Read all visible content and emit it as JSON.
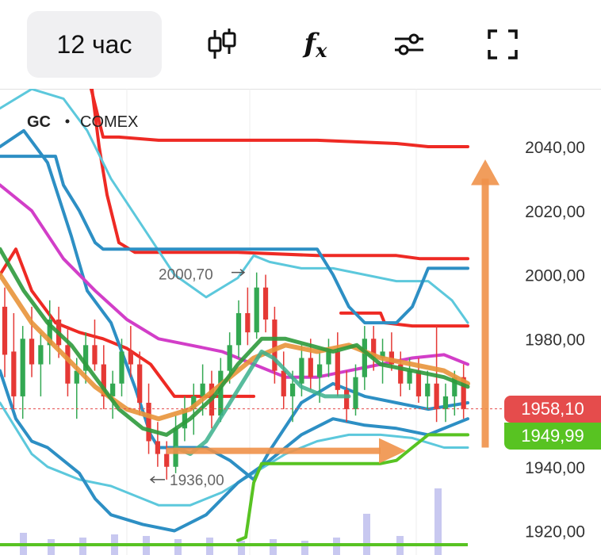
{
  "toolbar": {
    "interval_label": "12 час",
    "icons": [
      "candlestick-icon",
      "function-icon",
      "settings-sliders-icon",
      "fullscreen-icon"
    ]
  },
  "chart_data": {
    "type": "candlestick",
    "symbol": "GC",
    "exchange": "COMEX",
    "y_ticks": [
      "2040,00",
      "2020,00",
      "2000,00",
      "1980,00",
      "1940,00",
      "1920,00"
    ],
    "y_range": [
      1913,
      2053
    ],
    "annotations": {
      "high_label": "2000,70",
      "low_label": "1936,00"
    },
    "price_badges": {
      "last_price": "1958,10",
      "level": "1949,99"
    },
    "colors": {
      "up": "#33a852",
      "down": "#e53935",
      "red_band": "#ee2a24",
      "blue_band": "#2d8fc4",
      "cyan_band": "#5cc8dc",
      "magenta_ma": "#d23ec8",
      "orange_ma": "#e8943a",
      "green_ma": "#2e9a3c",
      "teal_line": "#3bb08c",
      "lime_line": "#58c322",
      "arrow": "#f0924a",
      "volume": "#c8c8f0"
    },
    "candles": [
      [
        1990,
        1996,
        1968,
        1975
      ],
      [
        1976,
        1988,
        1958,
        1962
      ],
      [
        1962,
        1984,
        1955,
        1980
      ],
      [
        1980,
        1990,
        1968,
        1972
      ],
      [
        1972,
        1982,
        1962,
        1978
      ],
      [
        1978,
        1992,
        1972,
        1986
      ],
      [
        1986,
        1990,
        1974,
        1978
      ],
      [
        1978,
        1984,
        1962,
        1966
      ],
      [
        1966,
        1974,
        1955,
        1970
      ],
      [
        1970,
        1982,
        1966,
        1978
      ],
      [
        1978,
        1986,
        1970,
        1972
      ],
      [
        1972,
        1978,
        1958,
        1962
      ],
      [
        1962,
        1970,
        1955,
        1966
      ],
      [
        1966,
        1980,
        1962,
        1976
      ],
      [
        1976,
        1984,
        1968,
        1972
      ],
      [
        1972,
        1976,
        1956,
        1960
      ],
      [
        1960,
        1966,
        1944,
        1948
      ],
      [
        1948,
        1954,
        1940,
        1944
      ],
      [
        1944,
        1948,
        1936,
        1940
      ],
      [
        1940,
        1956,
        1938,
        1952
      ],
      [
        1952,
        1962,
        1948,
        1958
      ],
      [
        1958,
        1966,
        1950,
        1962
      ],
      [
        1962,
        1972,
        1956,
        1966
      ],
      [
        1966,
        1970,
        1952,
        1956
      ],
      [
        1956,
        1974,
        1954,
        1970
      ],
      [
        1970,
        1982,
        1966,
        1978
      ],
      [
        1978,
        1992,
        1974,
        1988
      ],
      [
        1988,
        1996,
        1978,
        1982
      ],
      [
        1982,
        2000.7,
        1980,
        1996
      ],
      [
        1996,
        2000,
        1982,
        1986
      ],
      [
        1986,
        1990,
        1966,
        1970
      ],
      [
        1970,
        1976,
        1958,
        1962
      ],
      [
        1962,
        1970,
        1954,
        1966
      ],
      [
        1966,
        1978,
        1962,
        1974
      ],
      [
        1974,
        1980,
        1964,
        1968
      ],
      [
        1968,
        1976,
        1960,
        1972
      ],
      [
        1972,
        1980,
        1968,
        1976
      ],
      [
        1976,
        1982,
        1962,
        1964
      ],
      [
        1964,
        1970,
        1954,
        1958
      ],
      [
        1958,
        1972,
        1956,
        1968
      ],
      [
        1968,
        1984,
        1964,
        1980
      ],
      [
        1980,
        1984,
        1970,
        1974
      ],
      [
        1974,
        1980,
        1966,
        1976
      ],
      [
        1976,
        1982,
        1970,
        1972
      ],
      [
        1972,
        1976,
        1962,
        1966
      ],
      [
        1966,
        1974,
        1964,
        1970
      ],
      [
        1970,
        1974,
        1960,
        1962
      ],
      [
        1962,
        1970,
        1958,
        1966
      ],
      [
        1966,
        1984,
        1954,
        1958
      ],
      [
        1958,
        1966,
        1954,
        1962
      ],
      [
        1962,
        1970,
        1956,
        1968
      ],
      [
        1968,
        1972,
        1955,
        1958
      ]
    ],
    "bands": {
      "red": [
        [
          [
            110,
            2063
          ],
          [
            120,
            2053
          ],
          [
            130,
            2043
          ],
          [
            150,
            2043
          ],
          [
            200,
            2042
          ],
          [
            300,
            2042
          ],
          [
            400,
            2042
          ],
          [
            500,
            2041
          ],
          [
            540,
            2040
          ],
          [
            590,
            2040
          ]
        ],
        [
          [
            0,
            2000
          ],
          [
            20,
            2008
          ],
          [
            40,
            1995
          ],
          [
            70,
            1985
          ],
          [
            100,
            1982
          ],
          [
            130,
            1980
          ],
          [
            160,
            1977
          ],
          [
            190,
            1972
          ],
          [
            220,
            1962
          ],
          [
            270,
            1962
          ],
          [
            320,
            1962
          ]
        ],
        [
          [
            115,
            2060
          ],
          [
            125,
            2040
          ],
          [
            135,
            2025
          ],
          [
            150,
            2010
          ],
          [
            170,
            2007
          ],
          [
            250,
            2007
          ],
          [
            300,
            2007
          ],
          [
            400,
            2006
          ],
          [
            500,
            2006
          ],
          [
            530,
            2005
          ],
          [
            590,
            2005
          ]
        ],
        [
          [
            430,
            1988
          ],
          [
            470,
            1988
          ],
          [
            480,
            1988
          ],
          [
            485,
            1985
          ],
          [
            520,
            1984
          ],
          [
            590,
            1984
          ]
        ]
      ],
      "blue": [
        [
          [
            0,
            2037
          ],
          [
            70,
            2037
          ],
          [
            80,
            2028
          ],
          [
            100,
            2020
          ],
          [
            120,
            2010
          ],
          [
            130,
            2008
          ],
          [
            200,
            2008
          ],
          [
            300,
            2008
          ],
          [
            400,
            2008
          ],
          [
            420,
            2000
          ],
          [
            440,
            1990
          ],
          [
            460,
            1985
          ],
          [
            500,
            1985
          ],
          [
            520,
            1990
          ],
          [
            540,
            2002
          ],
          [
            590,
            2002
          ]
        ],
        [
          [
            0,
            2040
          ],
          [
            30,
            2045
          ],
          [
            60,
            2035
          ],
          [
            90,
            2012
          ],
          [
            110,
            1995
          ],
          [
            140,
            1985
          ],
          [
            170,
            1965
          ],
          [
            190,
            1950
          ],
          [
            200,
            1946
          ],
          [
            260,
            1946
          ],
          [
            290,
            1942
          ],
          [
            320,
            1936
          ],
          [
            340,
            1945
          ],
          [
            380,
            1960
          ],
          [
            420,
            1966
          ],
          [
            460,
            1962
          ],
          [
            500,
            1960
          ],
          [
            540,
            1958
          ],
          [
            590,
            1960
          ]
        ],
        [
          [
            0,
            1970
          ],
          [
            20,
            1955
          ],
          [
            40,
            1948
          ],
          [
            60,
            1946
          ],
          [
            80,
            1942
          ],
          [
            100,
            1938
          ],
          [
            120,
            1930
          ],
          [
            140,
            1925
          ],
          [
            180,
            1922
          ],
          [
            220,
            1920
          ],
          [
            260,
            1925
          ],
          [
            300,
            1935
          ],
          [
            340,
            1942
          ],
          [
            380,
            1950
          ],
          [
            420,
            1955
          ],
          [
            460,
            1953
          ],
          [
            500,
            1952
          ],
          [
            540,
            1950
          ],
          [
            590,
            1955
          ]
        ]
      ],
      "cyan": [
        [
          [
            0,
            2052
          ],
          [
            40,
            2058
          ],
          [
            80,
            2055
          ],
          [
            110,
            2045
          ],
          [
            140,
            2030
          ],
          [
            180,
            2015
          ],
          [
            220,
            2000
          ],
          [
            260,
            1993
          ],
          [
            300,
            1999
          ],
          [
            320,
            2006
          ],
          [
            340,
            2004
          ],
          [
            380,
            2002
          ],
          [
            420,
            2002
          ],
          [
            460,
            2000
          ],
          [
            500,
            1998
          ],
          [
            540,
            1998
          ],
          [
            570,
            1992
          ],
          [
            590,
            1985
          ]
        ],
        [
          [
            0,
            1960
          ],
          [
            20,
            1952
          ],
          [
            40,
            1944
          ],
          [
            60,
            1940
          ],
          [
            80,
            1938
          ],
          [
            100,
            1936
          ],
          [
            140,
            1934
          ],
          [
            180,
            1930
          ],
          [
            200,
            1928
          ],
          [
            240,
            1928
          ],
          [
            280,
            1932
          ],
          [
            320,
            1938
          ],
          [
            360,
            1944
          ],
          [
            400,
            1948
          ],
          [
            440,
            1950
          ],
          [
            480,
            1950
          ],
          [
            520,
            1949
          ],
          [
            560,
            1946
          ],
          [
            590,
            1946
          ]
        ]
      ],
      "magenta": [
        [
          0,
          2028
        ],
        [
          40,
          2020
        ],
        [
          80,
          2005
        ],
        [
          120,
          1995
        ],
        [
          160,
          1986
        ],
        [
          200,
          1980
        ],
        [
          240,
          1978
        ],
        [
          280,
          1976
        ],
        [
          320,
          1972
        ],
        [
          360,
          1968
        ],
        [
          400,
          1968
        ],
        [
          440,
          1970
        ],
        [
          480,
          1972
        ],
        [
          520,
          1974
        ],
        [
          560,
          1975
        ],
        [
          590,
          1972
        ]
      ],
      "orange": [
        [
          0,
          2000
        ],
        [
          40,
          1985
        ],
        [
          80,
          1975
        ],
        [
          120,
          1965
        ],
        [
          160,
          1958
        ],
        [
          200,
          1955
        ],
        [
          240,
          1958
        ],
        [
          280,
          1966
        ],
        [
          320,
          1974
        ],
        [
          360,
          1978
        ],
        [
          400,
          1976
        ],
        [
          440,
          1978
        ],
        [
          480,
          1974
        ],
        [
          520,
          1972
        ],
        [
          560,
          1970
        ],
        [
          590,
          1966
        ]
      ],
      "green": [
        [
          0,
          2008
        ],
        [
          30,
          1995
        ],
        [
          60,
          1985
        ],
        [
          90,
          1978
        ],
        [
          120,
          1968
        ],
        [
          150,
          1958
        ],
        [
          180,
          1952
        ],
        [
          210,
          1950
        ],
        [
          240,
          1955
        ],
        [
          270,
          1962
        ],
        [
          300,
          1972
        ],
        [
          330,
          1980
        ],
        [
          360,
          1980
        ],
        [
          390,
          1978
        ],
        [
          420,
          1976
        ],
        [
          450,
          1978
        ],
        [
          480,
          1972
        ],
        [
          520,
          1970
        ],
        [
          560,
          1968
        ],
        [
          590,
          1965
        ]
      ],
      "teal": [
        [
          222,
          1946
        ],
        [
          240,
          1944
        ],
        [
          260,
          1948
        ],
        [
          290,
          1960
        ],
        [
          320,
          1972
        ],
        [
          330,
          1976
        ],
        [
          345,
          1974
        ],
        [
          380,
          1965
        ],
        [
          410,
          1962
        ],
        [
          440,
          1962
        ]
      ],
      "lime": [
        [
          300,
          1917
        ],
        [
          310,
          1918
        ],
        [
          320,
          1935
        ],
        [
          330,
          1941
        ],
        [
          400,
          1941
        ],
        [
          450,
          1941
        ],
        [
          480,
          1941
        ],
        [
          500,
          1942
        ],
        [
          520,
          1946
        ],
        [
          540,
          1949.99
        ],
        [
          590,
          1949.99
        ]
      ]
    },
    "volume": [
      [
        25,
        28
      ],
      [
        60,
        20
      ],
      [
        100,
        22
      ],
      [
        140,
        26
      ],
      [
        180,
        24
      ],
      [
        220,
        20
      ],
      [
        260,
        22
      ],
      [
        300,
        18
      ],
      [
        340,
        20
      ],
      [
        380,
        18
      ],
      [
        420,
        22
      ],
      [
        458,
        52
      ],
      [
        500,
        24
      ],
      [
        548,
        84
      ]
    ]
  }
}
